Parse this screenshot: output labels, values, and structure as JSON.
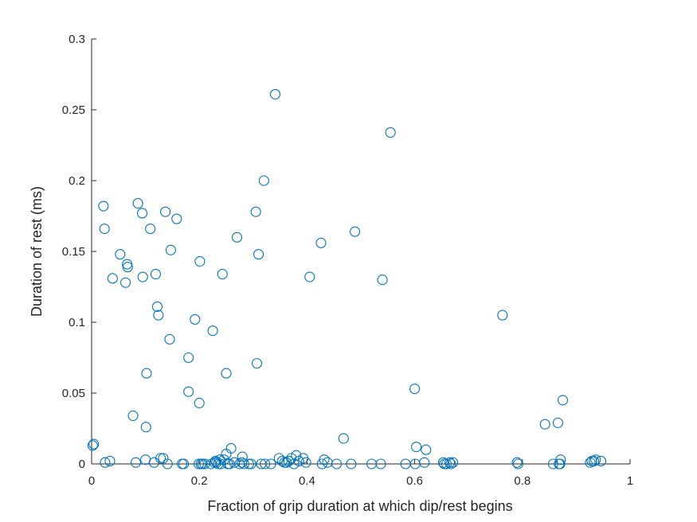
{
  "chart_data": {
    "type": "scatter",
    "xlabel": "Fraction of grip duration at which dip/rest begins",
    "ylabel": "Duration of rest (ms)",
    "xlim": [
      0,
      1
    ],
    "ylim": [
      0,
      0.3
    ],
    "xticks": [
      "0",
      "0.2",
      "0.4",
      "0.6",
      "0.8",
      "1"
    ],
    "yticks": [
      "0",
      "0.05",
      "0.1",
      "0.15",
      "0.2",
      "0.25",
      "0.3"
    ],
    "grid": false,
    "marker": "open-circle",
    "color": "#0072BD",
    "series": [
      {
        "points": [
          [
            0.002,
            0.013
          ],
          [
            0.004,
            0.014
          ],
          [
            0.022,
            0.182
          ],
          [
            0.024,
            0.166
          ],
          [
            0.025,
            0.001
          ],
          [
            0.034,
            0.002
          ],
          [
            0.039,
            0.131
          ],
          [
            0.053,
            0.148
          ],
          [
            0.063,
            0.128
          ],
          [
            0.066,
            0.141
          ],
          [
            0.067,
            0.139
          ],
          [
            0.077,
            0.034
          ],
          [
            0.082,
            0.001
          ],
          [
            0.086,
            0.184
          ],
          [
            0.094,
            0.177
          ],
          [
            0.095,
            0.132
          ],
          [
            0.102,
            0.064
          ],
          [
            0.101,
            0.026
          ],
          [
            0.1,
            0.003
          ],
          [
            0.109,
            0.166
          ],
          [
            0.116,
            0.001
          ],
          [
            0.119,
            0.134
          ],
          [
            0.122,
            0.111
          ],
          [
            0.124,
            0.105
          ],
          [
            0.128,
            0.004
          ],
          [
            0.133,
            0.004
          ],
          [
            0.137,
            0.178
          ],
          [
            0.141,
            0.0
          ],
          [
            0.145,
            0.088
          ],
          [
            0.147,
            0.151
          ],
          [
            0.158,
            0.173
          ],
          [
            0.168,
            0.0
          ],
          [
            0.171,
            0.0
          ],
          [
            0.18,
            0.075
          ],
          [
            0.18,
            0.051
          ],
          [
            0.192,
            0.102
          ],
          [
            0.199,
            0.0
          ],
          [
            0.2,
            0.043
          ],
          [
            0.201,
            0.143
          ],
          [
            0.203,
            0.0
          ],
          [
            0.206,
            0.0
          ],
          [
            0.21,
            0.0
          ],
          [
            0.222,
            0.0
          ],
          [
            0.225,
            0.094
          ],
          [
            0.228,
            0.001
          ],
          [
            0.23,
            0.002
          ],
          [
            0.232,
            0.001
          ],
          [
            0.235,
            0.0
          ],
          [
            0.238,
            0.003
          ],
          [
            0.24,
            0.0
          ],
          [
            0.243,
            0.134
          ],
          [
            0.246,
            0.003
          ],
          [
            0.25,
            0.064
          ],
          [
            0.25,
            0.007
          ],
          [
            0.253,
            0.0
          ],
          [
            0.256,
            0.0
          ],
          [
            0.259,
            0.011
          ],
          [
            0.265,
            0.001
          ],
          [
            0.27,
            0.16
          ],
          [
            0.275,
            0.0
          ],
          [
            0.279,
            0.001
          ],
          [
            0.28,
            0.005
          ],
          [
            0.283,
            0.0
          ],
          [
            0.292,
            0.0
          ],
          [
            0.296,
            0.0
          ],
          [
            0.305,
            0.178
          ],
          [
            0.307,
            0.071
          ],
          [
            0.31,
            0.148
          ],
          [
            0.315,
            0.0
          ],
          [
            0.32,
            0.2
          ],
          [
            0.322,
            0.0
          ],
          [
            0.333,
            0.0
          ],
          [
            0.341,
            0.261
          ],
          [
            0.348,
            0.004
          ],
          [
            0.354,
            0.002
          ],
          [
            0.358,
            0.001
          ],
          [
            0.362,
            0.001
          ],
          [
            0.366,
            0.002
          ],
          [
            0.371,
            0.004
          ],
          [
            0.376,
            0.0
          ],
          [
            0.38,
            0.006
          ],
          [
            0.385,
            0.002
          ],
          [
            0.393,
            0.004
          ],
          [
            0.398,
            0.001
          ],
          [
            0.405,
            0.132
          ],
          [
            0.426,
            0.156
          ],
          [
            0.428,
            0.0
          ],
          [
            0.432,
            0.003
          ],
          [
            0.438,
            0.001
          ],
          [
            0.455,
            0.0
          ],
          [
            0.468,
            0.018
          ],
          [
            0.482,
            0.0
          ],
          [
            0.489,
            0.164
          ],
          [
            0.52,
            0.0
          ],
          [
            0.537,
            0.0
          ],
          [
            0.54,
            0.13
          ],
          [
            0.555,
            0.234
          ],
          [
            0.583,
            0.0
          ],
          [
            0.6,
            0.053
          ],
          [
            0.601,
            0.0
          ],
          [
            0.603,
            0.012
          ],
          [
            0.618,
            0.001
          ],
          [
            0.621,
            0.01
          ],
          [
            0.653,
            0.001
          ],
          [
            0.655,
            0.0
          ],
          [
            0.659,
            0.0
          ],
          [
            0.665,
            0.001
          ],
          [
            0.667,
            0.0
          ],
          [
            0.671,
            0.001
          ],
          [
            0.763,
            0.105
          ],
          [
            0.79,
            0.001
          ],
          [
            0.792,
            0.0
          ],
          [
            0.842,
            0.028
          ],
          [
            0.857,
            0.0
          ],
          [
            0.866,
            0.029
          ],
          [
            0.868,
            0.0
          ],
          [
            0.87,
            0.0
          ],
          [
            0.871,
            0.003
          ],
          [
            0.875,
            0.045
          ],
          [
            0.926,
            0.001
          ],
          [
            0.929,
            0.002
          ],
          [
            0.933,
            0.002
          ],
          [
            0.936,
            0.003
          ],
          [
            0.946,
            0.002
          ]
        ]
      }
    ]
  }
}
